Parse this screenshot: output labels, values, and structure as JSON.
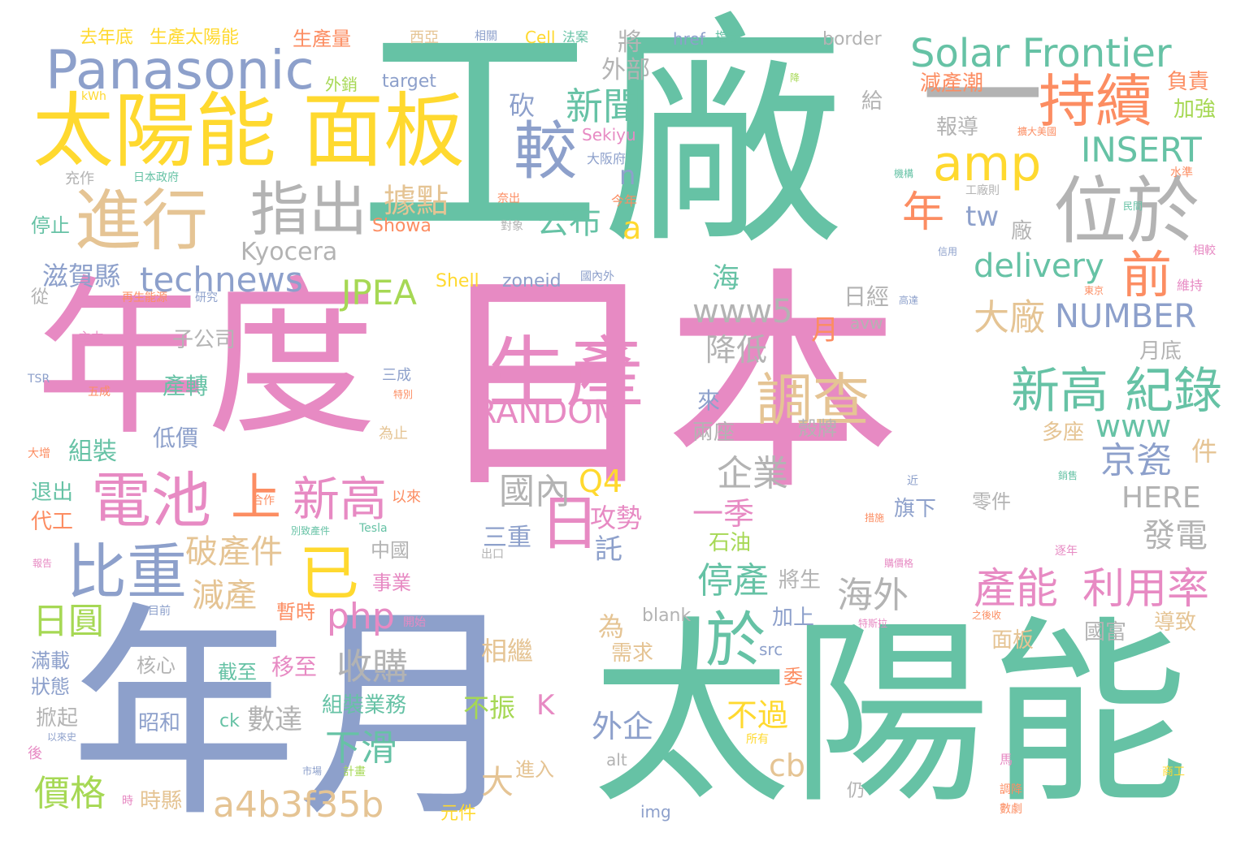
{
  "palette": {
    "green": "#66c2a5",
    "orange": "#fc8d62",
    "blue": "#8da0cb",
    "pink": "#e78ac3",
    "lime": "#a6d854",
    "yellow": "#ffd92f",
    "tan": "#e5c494",
    "gray": "#b3b3b3"
  },
  "words": [
    {
      "text": "日本",
      "color": "pink"
    },
    {
      "text": "工廠",
      "color": "green"
    },
    {
      "text": "年度",
      "color": "pink"
    },
    {
      "text": "年月",
      "color": "blue"
    },
    {
      "text": "太陽能",
      "color": "green"
    },
    {
      "text": "太陽能",
      "color": "yellow"
    },
    {
      "text": "面板",
      "color": "yellow"
    },
    {
      "text": "生產",
      "color": "pink"
    },
    {
      "text": "Panasonic",
      "color": "blue"
    },
    {
      "text": "Solar Frontier",
      "color": "green"
    },
    {
      "text": "進行",
      "color": "tan"
    },
    {
      "text": "指出",
      "color": "gray"
    },
    {
      "text": "較",
      "color": "blue"
    },
    {
      "text": "位於",
      "color": "gray"
    },
    {
      "text": "持續",
      "color": "orange"
    },
    {
      "text": "amp",
      "color": "yellow"
    },
    {
      "text": "一",
      "color": "gray"
    },
    {
      "text": "電池",
      "color": "pink"
    },
    {
      "text": "比重",
      "color": "blue"
    },
    {
      "text": "調查",
      "color": "tan"
    },
    {
      "text": "新高",
      "color": "green"
    },
    {
      "text": "紀錄",
      "color": "green"
    },
    {
      "text": "新高",
      "color": "pink"
    },
    {
      "text": "已",
      "color": "yellow"
    },
    {
      "text": "日",
      "color": "pink"
    },
    {
      "text": "於",
      "color": "green"
    },
    {
      "text": "上",
      "color": "orange"
    },
    {
      "text": "新聞",
      "color": "green"
    },
    {
      "text": "technews",
      "color": "blue"
    },
    {
      "text": "年",
      "color": "orange"
    },
    {
      "text": "前",
      "color": "orange"
    },
    {
      "text": "delivery",
      "color": "green"
    },
    {
      "text": "INSERT",
      "color": "green"
    },
    {
      "text": "NUMBER",
      "color": "blue"
    },
    {
      "text": "RANDOM",
      "color": "pink"
    },
    {
      "text": "www5",
      "color": "gray"
    },
    {
      "text": "www",
      "color": "green"
    },
    {
      "text": "a4b3f35b",
      "color": "tan"
    },
    {
      "text": "php",
      "color": "pink"
    },
    {
      "text": "JPEA",
      "color": "lime"
    },
    {
      "text": "Kyocera",
      "color": "gray"
    },
    {
      "text": "據點",
      "color": "tan"
    },
    {
      "text": "公布",
      "color": "green"
    },
    {
      "text": "產能",
      "color": "pink"
    },
    {
      "text": "利用率",
      "color": "pink"
    },
    {
      "text": "京瓷",
      "color": "blue"
    },
    {
      "text": "大廠",
      "color": "tan"
    },
    {
      "text": "海外",
      "color": "gray"
    },
    {
      "text": "停產",
      "color": "green"
    },
    {
      "text": "企業",
      "color": "gray"
    },
    {
      "text": "國內",
      "color": "gray"
    },
    {
      "text": "收購",
      "color": "gray"
    },
    {
      "text": "破產件",
      "color": "tan"
    },
    {
      "text": "減產",
      "color": "tan"
    },
    {
      "text": "日圓",
      "color": "lime"
    },
    {
      "text": "價格",
      "color": "lime"
    },
    {
      "text": "下滑",
      "color": "green"
    },
    {
      "text": "數達",
      "color": "gray"
    },
    {
      "text": "發電",
      "color": "gray"
    },
    {
      "text": "HERE",
      "color": "gray"
    },
    {
      "text": "滋賀縣",
      "color": "blue"
    },
    {
      "text": "降低",
      "color": "gray"
    },
    {
      "text": "一季",
      "color": "pink"
    },
    {
      "text": "不過",
      "color": "yellow"
    },
    {
      "text": "外企",
      "color": "blue"
    },
    {
      "text": "cb",
      "color": "tan"
    },
    {
      "text": "Q4",
      "color": "yellow"
    },
    {
      "text": "三重",
      "color": "blue"
    },
    {
      "text": "攻勢",
      "color": "pink"
    },
    {
      "text": "託",
      "color": "blue"
    },
    {
      "text": "相繼",
      "color": "tan"
    },
    {
      "text": "不振",
      "color": "lime"
    },
    {
      "text": "K",
      "color": "pink"
    },
    {
      "text": "將",
      "color": "gray"
    },
    {
      "text": "外部",
      "color": "gray"
    },
    {
      "text": "砍",
      "color": "blue"
    },
    {
      "text": "n",
      "color": "blue"
    },
    {
      "text": "a",
      "color": "yellow"
    },
    {
      "text": "tw",
      "color": "blue"
    },
    {
      "text": "海",
      "color": "green"
    },
    {
      "text": "月",
      "color": "orange"
    },
    {
      "text": "日經",
      "color": "gray"
    },
    {
      "text": "報導",
      "color": "gray"
    },
    {
      "text": "減產潮",
      "color": "orange"
    },
    {
      "text": "負責",
      "color": "orange"
    },
    {
      "text": "加強",
      "color": "lime"
    },
    {
      "text": "給",
      "color": "gray"
    },
    {
      "text": "廠",
      "color": "gray"
    },
    {
      "text": "月底",
      "color": "gray"
    },
    {
      "text": "件",
      "color": "tan"
    },
    {
      "text": "多座",
      "color": "tan"
    },
    {
      "text": "國富",
      "color": "gray"
    },
    {
      "text": "導致",
      "color": "tan"
    },
    {
      "text": "面板",
      "color": "tan"
    },
    {
      "text": "零件",
      "color": "gray"
    },
    {
      "text": "旗下",
      "color": "blue"
    },
    {
      "text": "石油",
      "color": "lime"
    },
    {
      "text": "將生",
      "color": "gray"
    },
    {
      "text": "加上",
      "color": "blue"
    },
    {
      "text": "為",
      "color": "tan"
    },
    {
      "text": "需求",
      "color": "tan"
    },
    {
      "text": "委",
      "color": "orange"
    },
    {
      "text": "大",
      "color": "tan"
    },
    {
      "text": "進入",
      "color": "tan"
    },
    {
      "text": "仍",
      "color": "gray"
    },
    {
      "text": "來",
      "color": "blue"
    },
    {
      "text": "兩座",
      "color": "gray"
    },
    {
      "text": "殼牌",
      "color": "gray"
    },
    {
      "text": "中國",
      "color": "gray"
    },
    {
      "text": "事業",
      "color": "pink"
    },
    {
      "text": "暫時",
      "color": "orange"
    },
    {
      "text": "移至",
      "color": "pink"
    },
    {
      "text": "截至",
      "color": "green"
    },
    {
      "text": "組裝業務",
      "color": "green"
    },
    {
      "text": "昭和",
      "color": "blue"
    },
    {
      "text": "核心",
      "color": "gray"
    },
    {
      "text": "掀起",
      "color": "gray"
    },
    {
      "text": "滿載",
      "color": "blue"
    },
    {
      "text": "狀態",
      "color": "blue"
    },
    {
      "text": "子公司",
      "color": "gray"
    },
    {
      "text": "產轉",
      "color": "green"
    },
    {
      "text": "低價",
      "color": "blue"
    },
    {
      "text": "組裝",
      "color": "green"
    },
    {
      "text": "退出",
      "color": "green"
    },
    {
      "text": "代工",
      "color": "orange"
    },
    {
      "text": "停止",
      "color": "green"
    },
    {
      "text": "從",
      "color": "gray"
    },
    {
      "text": "去年底",
      "color": "yellow"
    },
    {
      "text": "生產太陽能",
      "color": "yellow"
    },
    {
      "text": "生產量",
      "color": "orange"
    },
    {
      "text": "西亞",
      "color": "tan"
    },
    {
      "text": "相關",
      "color": "blue"
    },
    {
      "text": "Cell",
      "color": "yellow"
    },
    {
      "text": "法案",
      "color": "green"
    },
    {
      "text": "href",
      "color": "blue"
    },
    {
      "text": "擋手",
      "color": "green"
    },
    {
      "text": "border",
      "color": "gray"
    },
    {
      "text": "外銷",
      "color": "lime"
    },
    {
      "text": "target",
      "color": "blue"
    },
    {
      "text": "Sekiyu",
      "color": "pink"
    },
    {
      "text": "大阪府",
      "color": "blue"
    },
    {
      "text": "今年",
      "color": "orange"
    },
    {
      "text": "奈出",
      "color": "orange"
    },
    {
      "text": "對象",
      "color": "gray"
    },
    {
      "text": "Showa",
      "color": "orange"
    },
    {
      "text": "Shell",
      "color": "yellow"
    },
    {
      "text": "zoneid",
      "color": "blue"
    },
    {
      "text": "國內外",
      "color": "blue"
    },
    {
      "text": "avw",
      "color": "gray"
    },
    {
      "text": "三成",
      "color": "blue"
    },
    {
      "text": "為止",
      "color": "tan"
    },
    {
      "text": "合作",
      "color": "orange"
    },
    {
      "text": "以來",
      "color": "orange"
    },
    {
      "text": "Tesla",
      "color": "green"
    },
    {
      "text": "別致產件",
      "color": "green"
    },
    {
      "text": "出口",
      "color": "gray"
    },
    {
      "text": "開始",
      "color": "pink"
    },
    {
      "text": "blank",
      "color": "gray"
    },
    {
      "text": "src",
      "color": "blue"
    },
    {
      "text": "ck",
      "color": "green"
    },
    {
      "text": "alt",
      "color": "gray"
    },
    {
      "text": "img",
      "color": "blue"
    },
    {
      "text": "元件",
      "color": "yellow"
    },
    {
      "text": "市場",
      "color": "blue"
    },
    {
      "text": "計畫",
      "color": "lime"
    },
    {
      "text": "時縣",
      "color": "tan"
    },
    {
      "text": "時",
      "color": "pink"
    },
    {
      "text": "所有",
      "color": "yellow"
    },
    {
      "text": "以來史",
      "color": "blue"
    },
    {
      "text": "後",
      "color": "pink"
    },
    {
      "text": "充作",
      "color": "gray"
    },
    {
      "text": "日本政府",
      "color": "green"
    },
    {
      "text": "kWh",
      "color": "yellow"
    },
    {
      "text": "再生能源",
      "color": "orange"
    },
    {
      "text": "研究",
      "color": "blue"
    },
    {
      "text": "主力",
      "color": "pink"
    },
    {
      "text": "TSR",
      "color": "blue"
    },
    {
      "text": "五成",
      "color": "orange"
    },
    {
      "text": "特別",
      "color": "orange"
    },
    {
      "text": "大增",
      "color": "orange"
    },
    {
      "text": "報告",
      "color": "pink"
    },
    {
      "text": "目前",
      "color": "blue"
    },
    {
      "text": "擴大美國",
      "color": "orange"
    },
    {
      "text": "機構",
      "color": "green"
    },
    {
      "text": "水準",
      "color": "orange"
    },
    {
      "text": "工廠則",
      "color": "gray"
    },
    {
      "text": "民間",
      "color": "green"
    },
    {
      "text": "相較",
      "color": "pink"
    },
    {
      "text": "信用",
      "color": "blue"
    },
    {
      "text": "維持",
      "color": "pink"
    },
    {
      "text": "東京",
      "color": "orange"
    },
    {
      "text": "高達",
      "color": "blue"
    },
    {
      "text": "銷售",
      "color": "green"
    },
    {
      "text": "措施",
      "color": "orange"
    },
    {
      "text": "近",
      "color": "blue"
    },
    {
      "text": "逐年",
      "color": "pink"
    },
    {
      "text": "購價格",
      "color": "pink"
    },
    {
      "text": "特斯拉",
      "color": "pink"
    },
    {
      "text": "之後收",
      "color": "orange"
    },
    {
      "text": "馬",
      "color": "pink"
    },
    {
      "text": "商工",
      "color": "yellow"
    },
    {
      "text": "調降",
      "color": "orange"
    },
    {
      "text": "數劇",
      "color": "orange"
    },
    {
      "text": "降",
      "color": "lime"
    }
  ]
}
